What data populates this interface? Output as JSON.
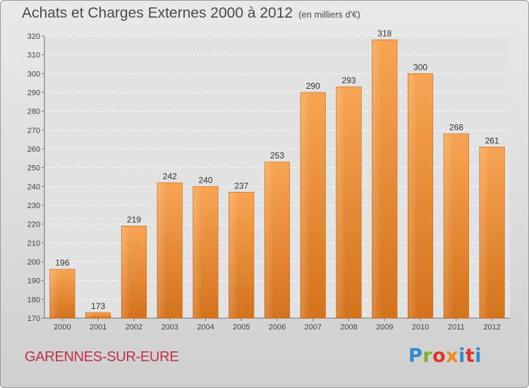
{
  "title": "Achats et Charges Externes 2000 à 2012",
  "unit": "(en milliers d'€)",
  "commune": "GARENNES-SUR-EURE",
  "logo": "Proxiti",
  "chart_data": {
    "type": "bar",
    "categories": [
      "2000",
      "2001",
      "2002",
      "2003",
      "2004",
      "2005",
      "2006",
      "2007",
      "2008",
      "2009",
      "2010",
      "2011",
      "2012"
    ],
    "values": [
      196,
      173,
      219,
      242,
      240,
      237,
      253,
      290,
      293,
      318,
      300,
      268,
      261
    ],
    "ylim": [
      170,
      320
    ],
    "yticks": [
      170,
      180,
      190,
      200,
      210,
      220,
      230,
      240,
      250,
      260,
      270,
      280,
      290,
      300,
      310,
      320
    ],
    "grid": true,
    "bar_color": "#f0903a"
  }
}
